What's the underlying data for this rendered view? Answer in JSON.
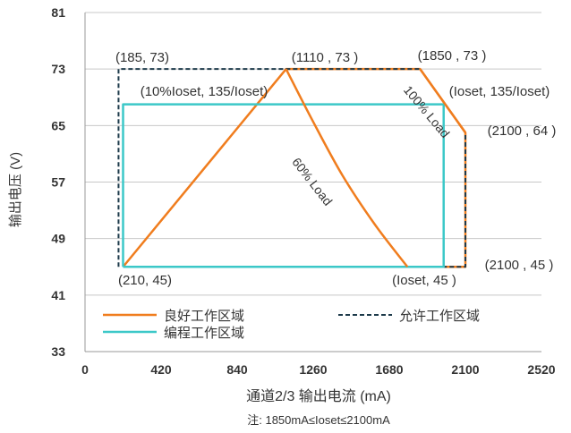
{
  "chart_data": {
    "type": "line",
    "xlabel": "通道2/3 输出电流 (mA)",
    "ylabel": "输出电压 (V)",
    "note": "注: 1850mA≤Ioset≤2100mA",
    "xlim": [
      0,
      2520
    ],
    "ylim": [
      33,
      81
    ],
    "xticks": [
      0,
      420,
      840,
      1260,
      1680,
      2100,
      2520
    ],
    "yticks": [
      33,
      41,
      49,
      57,
      65,
      73,
      81
    ],
    "grid": "horizontal",
    "legend_position": "bottom-left",
    "series": [
      {
        "name": "良好工作区域",
        "color": "#f07d1e",
        "style": "solid",
        "x": [
          210,
          1110,
          1850,
          2100,
          2100,
          1850,
          210
        ],
        "y": [
          45,
          73,
          73,
          64,
          45,
          45,
          45
        ]
      },
      {
        "name": "允许工作区域",
        "color": "#1d3a4a",
        "style": "dashed",
        "x": [
          185,
          185,
          1110,
          1850,
          2100,
          2100,
          210
        ],
        "y": [
          45,
          73,
          73,
          73,
          64,
          45,
          45
        ]
      },
      {
        "name": "编程工作区域",
        "color": "#3cc8c8",
        "style": "solid",
        "x": [
          210,
          210,
          1980,
          1980,
          210
        ],
        "y": [
          45,
          68,
          68,
          45,
          45
        ]
      }
    ],
    "curves": [
      {
        "label": "60% Load",
        "color": "#f07d1e",
        "x": [
          1110,
          1250,
          1420,
          1600,
          1780
        ],
        "y": [
          73,
          66,
          58,
          51,
          45
        ]
      },
      {
        "label": "100% Load",
        "color": "#f07d1e",
        "x": [
          1850,
          2100
        ],
        "y": [
          73,
          64
        ]
      }
    ],
    "annotations": [
      {
        "text": "(185, 73)"
      },
      {
        "text": "(1110 , 73 )"
      },
      {
        "text": "(1850 , 73 )"
      },
      {
        "text": "(10%Ioset, 135/Ioset)"
      },
      {
        "text": "(Ioset, 135/Ioset)"
      },
      {
        "text": "(2100 , 64 )"
      },
      {
        "text": "(2100 , 45 )"
      },
      {
        "text": "(210, 45)"
      },
      {
        "text": "(Ioset, 45 )"
      }
    ]
  }
}
